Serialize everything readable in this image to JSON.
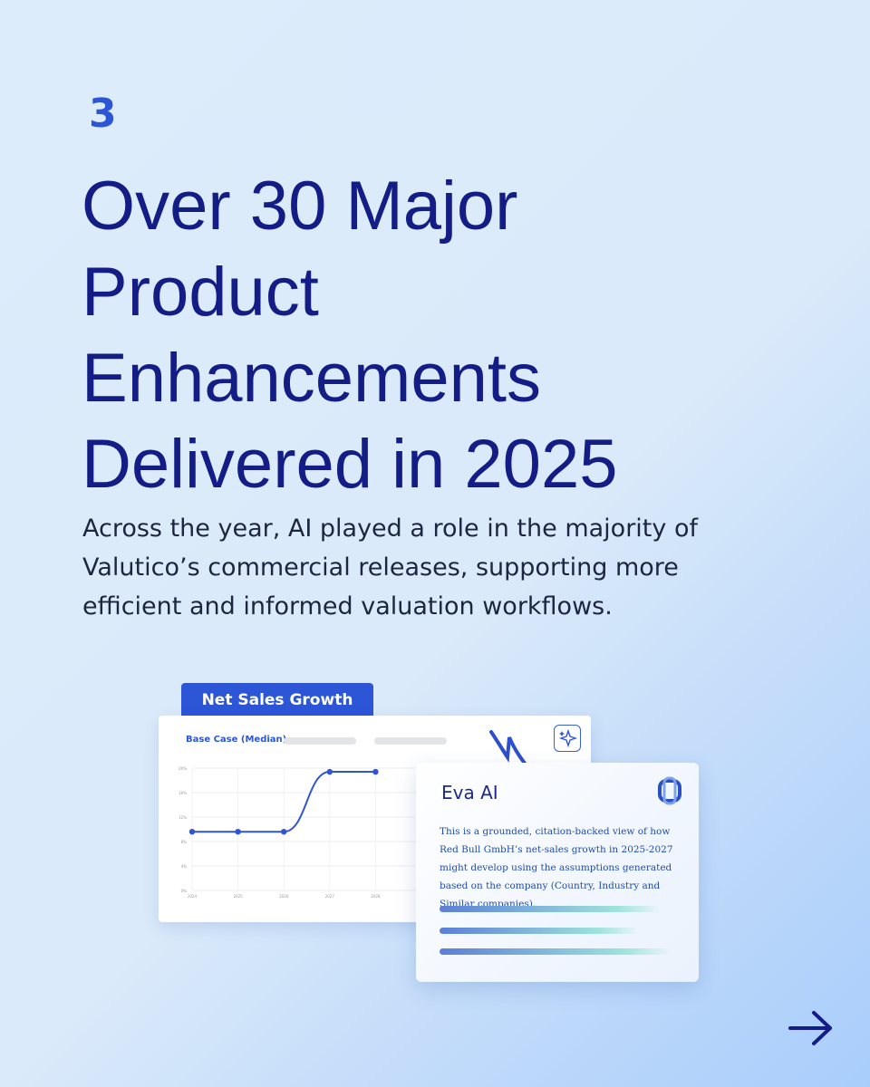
{
  "slide_number": "3",
  "title_lines": [
    "Over 30 Major",
    "Product",
    "Enhancements",
    "Delivered in 2025"
  ],
  "body": "Across the year, AI played a role in the majority of Valutico’s commercial releases, supporting more efficient and informed valuation workflows.",
  "chart_card": {
    "tab": "Net Sales Growth",
    "legend": "Base Case (Median)"
  },
  "chart_data": {
    "type": "line",
    "categories": [
      "2024",
      "2025",
      "2026",
      "2027",
      "2028"
    ],
    "series": [
      {
        "color": "#2f54d4",
        "values": [
          9.6,
          9.6,
          9.6,
          19.4,
          19.4
        ]
      }
    ],
    "ylim": [
      0,
      20
    ],
    "yticks": [
      {
        "value": 0,
        "label": "0%"
      },
      {
        "value": 4,
        "label": "4%"
      },
      {
        "value": 8,
        "label": "8%"
      },
      {
        "value": 12,
        "label": "12%"
      },
      {
        "value": 16,
        "label": "16%"
      },
      {
        "value": 20,
        "label": "20%"
      }
    ],
    "grid": true
  },
  "eva_card": {
    "title": "Eva AI",
    "text": "This is a grounded, citation-backed view of how Red Bull GmbH’s net-sales growth in 2025-2027 might develop using the assumptions generated based on the company (Country, Industry and Similar companies)."
  }
}
